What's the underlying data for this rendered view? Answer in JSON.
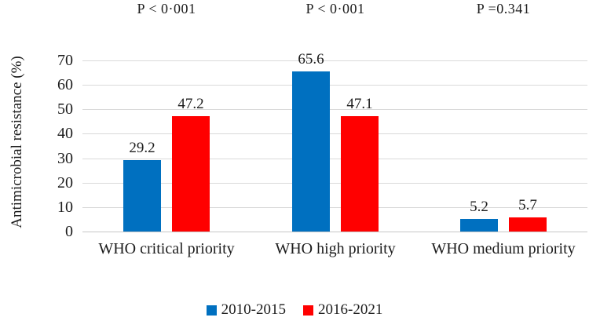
{
  "chart_data": {
    "type": "bar",
    "title": "",
    "xlabel": "",
    "ylabel": "Antimicrobial resistance (%)",
    "ylim": [
      0,
      70
    ],
    "yticks": [
      0,
      10,
      20,
      30,
      40,
      50,
      60,
      70
    ],
    "grid": true,
    "legend_position": "bottom",
    "categories": [
      "WHO critical priority",
      "WHO high priority",
      "WHO medium priority"
    ],
    "p_values": [
      "P < 0·001",
      "P < 0·001",
      "P =0.341"
    ],
    "series": [
      {
        "name": "2010-2015",
        "color": "#0070C0",
        "values": [
          29.2,
          65.6,
          5.2
        ]
      },
      {
        "name": "2016-2021",
        "color": "#FF0000",
        "values": [
          47.2,
          47.1,
          5.7
        ]
      }
    ]
  },
  "colors": {
    "gridline": "#d9d9d9",
    "baseline": "#c6c6c6",
    "text": "#1c1c1c",
    "background": "#ffffff"
  }
}
